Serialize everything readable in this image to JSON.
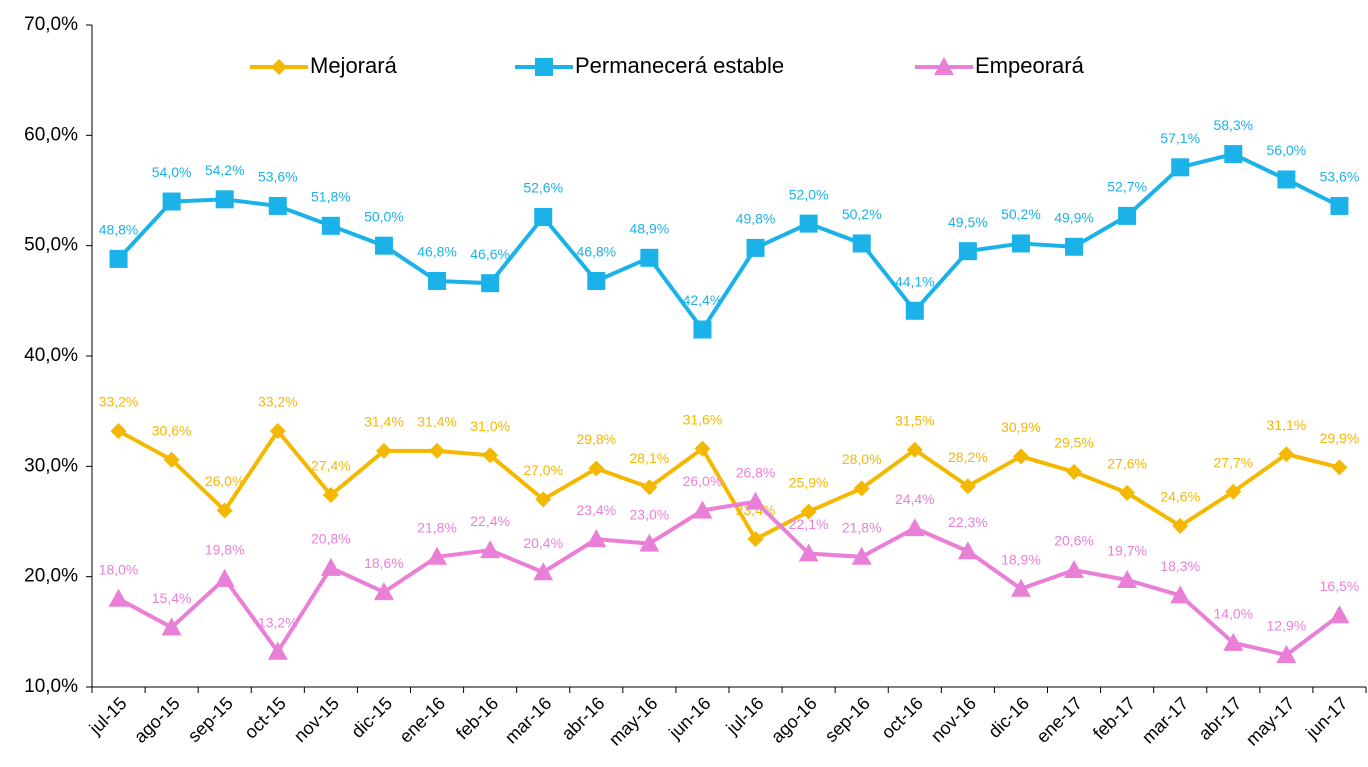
{
  "chart_data": {
    "type": "line",
    "categories": [
      "jul-15",
      "ago-15",
      "sep-15",
      "oct-15",
      "nov-15",
      "dic-15",
      "ene-16",
      "feb-16",
      "mar-16",
      "abr-16",
      "may-16",
      "jun-16",
      "jul-16",
      "ago-16",
      "sep-16",
      "oct-16",
      "nov-16",
      "dic-16",
      "ene-17",
      "feb-17",
      "mar-17",
      "abr-17",
      "may-17",
      "jun-17"
    ],
    "series": [
      {
        "name": "Mejorará",
        "color": "#f5b800",
        "marker": "diamond",
        "values": [
          33.2,
          30.6,
          26.0,
          33.2,
          27.4,
          31.4,
          31.4,
          31.0,
          27.0,
          29.8,
          28.1,
          31.6,
          23.4,
          25.9,
          28.0,
          31.5,
          28.2,
          30.9,
          29.5,
          27.6,
          24.6,
          27.7,
          31.1,
          29.9
        ],
        "value_labels": [
          "33,2%",
          "30,6%",
          "26,0%",
          "33,2%",
          "27,4%",
          "31,4%",
          "31,4%",
          "31,0%",
          "27,0%",
          "29,8%",
          "28,1%",
          "31,6%",
          "23,4%",
          "25,9%",
          "28,0%",
          "31,5%",
          "28,2%",
          "30,9%",
          "29,5%",
          "27,6%",
          "24,6%",
          "27,7%",
          "31,1%",
          "29,9%"
        ]
      },
      {
        "name": "Permanecerá estable",
        "color": "#1ab2e8",
        "marker": "square",
        "values": [
          48.8,
          54.0,
          54.2,
          53.6,
          51.8,
          50.0,
          46.8,
          46.6,
          52.6,
          46.8,
          48.9,
          42.4,
          49.8,
          52.0,
          50.2,
          44.1,
          49.5,
          50.2,
          49.9,
          52.7,
          57.1,
          58.3,
          56.0,
          53.6
        ],
        "value_labels": [
          "48,8%",
          "54,0%",
          "54,2%",
          "53,6%",
          "51,8%",
          "50,0%",
          "46,8%",
          "46,6%",
          "52,6%",
          "46,8%",
          "48,9%",
          "42,4%",
          "49,8%",
          "52,0%",
          "50,2%",
          "44,1%",
          "49,5%",
          "50,2%",
          "49,9%",
          "52,7%",
          "57,1%",
          "58,3%",
          "56,0%",
          "53,6%"
        ]
      },
      {
        "name": "Empeorará",
        "color": "#ea7fd8",
        "marker": "triangle",
        "values": [
          18.0,
          15.4,
          19.8,
          13.2,
          20.8,
          18.6,
          21.8,
          22.4,
          20.4,
          23.4,
          23.0,
          26.0,
          26.8,
          22.1,
          21.8,
          24.4,
          22.3,
          18.9,
          20.6,
          19.7,
          18.3,
          14.0,
          12.9,
          16.5
        ],
        "value_labels": [
          "18,0%",
          "15,4%",
          "19,8%",
          "13,2%",
          "20,8%",
          "18,6%",
          "21,8%",
          "22,4%",
          "20,4%",
          "23,4%",
          "23,0%",
          "26,0%",
          "26,8%",
          "22,1%",
          "21,8%",
          "24,4%",
          "22,3%",
          "18,9%",
          "20,6%",
          "19,7%",
          "18,3%",
          "14,0%",
          "12,9%",
          "16,5%"
        ]
      }
    ],
    "ylim": [
      10,
      70
    ],
    "yticks": [
      {
        "value": 10,
        "label": "10,0%"
      },
      {
        "value": 20,
        "label": "20,0%"
      },
      {
        "value": 30,
        "label": "30,0%"
      },
      {
        "value": 40,
        "label": "40,0%"
      },
      {
        "value": 50,
        "label": "50,0%"
      },
      {
        "value": 60,
        "label": "60,0%"
      },
      {
        "value": 70,
        "label": "70,0%"
      }
    ],
    "legend": "top",
    "grid": false
  }
}
